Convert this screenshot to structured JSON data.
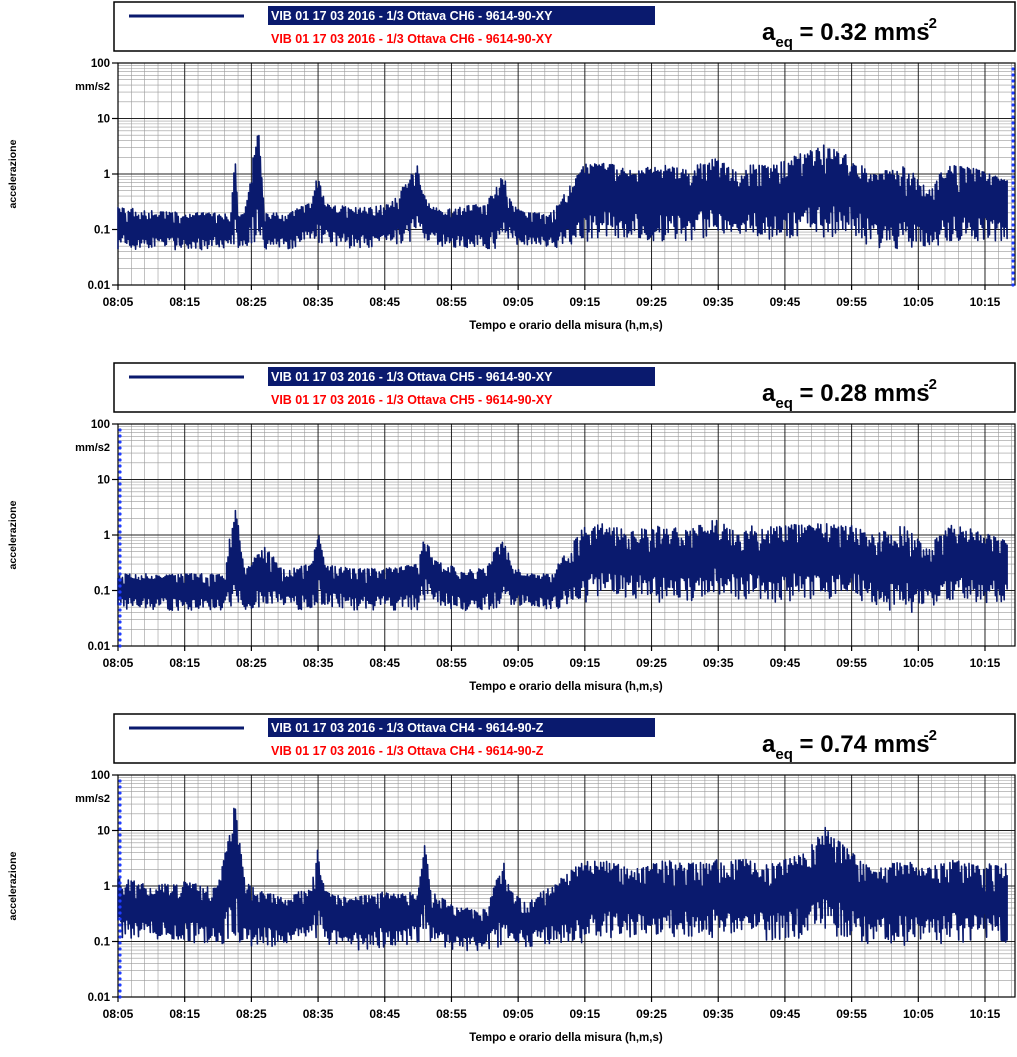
{
  "colors": {
    "series": "#0a1a6e",
    "legend_red": "#ff0000",
    "marker": "#1f3cff",
    "grid_major": "#222222",
    "grid_minor": "#9a9a9a"
  },
  "chart_data": [
    {
      "type": "line",
      "legend": {
        "series_label": "VIB 01 17 03 2016 - 1/3 Ottava CH6 - 9614-90-XY",
        "secondary_label": "VIB 01 17 03 2016 - 1/3 Ottava CH6 - 9614-90-XY"
      },
      "aeq": {
        "base": "a",
        "sub": "eq",
        "text": " = 0.32 mms",
        "sup": "-2"
      },
      "ylabel": "accelerazione",
      "yunit": "mm/s2",
      "xlabel": "Tempo e orario della misura (h,m,s)",
      "yscale": "log",
      "ylim": [
        0.01,
        100
      ],
      "yticks": [
        "100",
        "10",
        "1",
        "0.1",
        "0.01"
      ],
      "xticks": [
        "08:05",
        "08:15",
        "08:25",
        "08:35",
        "08:45",
        "08:55",
        "09:05",
        "09:15",
        "09:25",
        "09:35",
        "09:45",
        "09:55",
        "10:05",
        "10:15"
      ],
      "marker_side": "right",
      "series": [
        {
          "name": "VIB 01 17 03 2016 - 1/3 Ottava CH6 - 9614-90-XY",
          "x_minutes": [
            0,
            10,
            17,
            17.5,
            18,
            19,
            21,
            22,
            25,
            29,
            30,
            31,
            35,
            38,
            41,
            45,
            46,
            47,
            51,
            55,
            58,
            59,
            61,
            65,
            70,
            73,
            77,
            82,
            85,
            90,
            93,
            95,
            98,
            103,
            106,
            110,
            113,
            118,
            121,
            125,
            128,
            133
          ],
          "low": [
            0.04,
            0.04,
            0.04,
            0.04,
            0.04,
            0.04,
            0.04,
            0.04,
            0.04,
            0.05,
            0.05,
            0.05,
            0.04,
            0.04,
            0.04,
            0.05,
            0.05,
            0.05,
            0.04,
            0.04,
            0.04,
            0.05,
            0.05,
            0.04,
            0.05,
            0.06,
            0.06,
            0.05,
            0.05,
            0.07,
            0.06,
            0.06,
            0.05,
            0.06,
            0.05,
            0.07,
            0.04,
            0.03,
            0.04,
            0.05,
            0.05,
            0.05
          ],
          "high": [
            0.25,
            0.2,
            0.2,
            3,
            0.2,
            0.2,
            8,
            0.2,
            0.2,
            0.3,
            1.2,
            0.3,
            0.25,
            0.25,
            0.3,
            1.5,
            0.4,
            0.25,
            0.25,
            0.3,
            1.1,
            0.3,
            0.2,
            0.2,
            1.5,
            1.6,
            1.2,
            1.5,
            1.2,
            2,
            1,
            1.5,
            1.4,
            2.5,
            3.5,
            2,
            1,
            1.5,
            0.6,
            1.5,
            1.3,
            0.8
          ]
        }
      ]
    },
    {
      "type": "line",
      "legend": {
        "series_label": "VIB 01 17 03 2016 - 1/3 Ottava CH5 - 9614-90-XY",
        "secondary_label": "VIB 01 17 03 2016 - 1/3 Ottava CH5 - 9614-90-XY"
      },
      "aeq": {
        "base": "a",
        "sub": "eq",
        "text": " = 0.28 mms",
        "sup": "-2"
      },
      "ylabel": "accelerazione",
      "yunit": "mm/s2",
      "xlabel": "Tempo e orario della misura (h,m,s)",
      "yscale": "log",
      "ylim": [
        0.01,
        100
      ],
      "yticks": [
        "100",
        "10",
        "1",
        "0.1",
        "0.01"
      ],
      "xticks": [
        "08:05",
        "08:15",
        "08:25",
        "08:35",
        "08:45",
        "08:55",
        "09:05",
        "09:15",
        "09:25",
        "09:35",
        "09:45",
        "09:55",
        "10:05",
        "10:15"
      ],
      "marker_side": "left",
      "series": [
        {
          "name": "VIB 01 17 03 2016 - 1/3 Ottava CH5 - 9614-90-XY",
          "x_minutes": [
            0,
            10,
            16,
            17.5,
            19,
            22,
            25,
            29,
            30,
            31,
            35,
            40,
            45,
            46,
            47,
            51,
            55,
            58,
            59,
            61,
            65,
            70,
            73,
            77,
            82,
            85,
            90,
            93,
            95,
            98,
            103,
            106,
            110,
            113,
            118,
            121,
            125,
            128,
            133
          ],
          "low": [
            0.04,
            0.04,
            0.04,
            0.04,
            0.04,
            0.04,
            0.04,
            0.04,
            0.05,
            0.05,
            0.04,
            0.04,
            0.04,
            0.05,
            0.05,
            0.04,
            0.04,
            0.04,
            0.05,
            0.05,
            0.04,
            0.05,
            0.06,
            0.06,
            0.05,
            0.05,
            0.07,
            0.06,
            0.06,
            0.05,
            0.06,
            0.05,
            0.07,
            0.04,
            0.03,
            0.04,
            0.05,
            0.05,
            0.05
          ],
          "high": [
            0.2,
            0.2,
            0.2,
            4,
            0.25,
            0.6,
            0.25,
            0.3,
            1.2,
            0.3,
            0.25,
            0.25,
            0.3,
            1.3,
            0.4,
            0.25,
            0.25,
            1.1,
            0.3,
            0.2,
            0.2,
            1.5,
            1.6,
            1.2,
            1.5,
            1.2,
            2,
            1,
            1.5,
            1.4,
            1.6,
            1.6,
            1.5,
            1,
            1.5,
            0.6,
            1.5,
            1.3,
            0.8
          ]
        }
      ]
    },
    {
      "type": "line",
      "legend": {
        "series_label": "VIB 01 17 03 2016 - 1/3 Ottava CH4 - 9614-90-Z",
        "secondary_label": "VIB 01 17 03 2016 - 1/3 Ottava CH4 - 9614-90-Z"
      },
      "aeq": {
        "base": "a",
        "sub": "eq",
        "text": " = 0.74 mms",
        "sup": "-2"
      },
      "ylabel": "accelerazione",
      "yunit": "mm/s2",
      "xlabel": "Tempo e orario della misura (h,m,s)",
      "yscale": "log",
      "ylim": [
        0.01,
        100
      ],
      "yticks": [
        "100",
        "10",
        "1",
        "0.1",
        "0.01"
      ],
      "xticks": [
        "08:05",
        "08:15",
        "08:25",
        "08:35",
        "08:45",
        "08:55",
        "09:05",
        "09:15",
        "09:25",
        "09:35",
        "09:45",
        "09:55",
        "10:05",
        "10:15"
      ],
      "marker_side": "left",
      "series": [
        {
          "name": "VIB 01 17 03 2016 - 1/3 Ottava CH4 - 9614-90-Z",
          "x_minutes": [
            0,
            5,
            10,
            15,
            17.5,
            19,
            22,
            25,
            29,
            30,
            31,
            35,
            40,
            45,
            46,
            47,
            51,
            55,
            58,
            59,
            61,
            65,
            70,
            73,
            77,
            82,
            85,
            90,
            93,
            95,
            98,
            103,
            106,
            110,
            113,
            118,
            121,
            125,
            128,
            133
          ],
          "low": [
            0.1,
            0.1,
            0.08,
            0.07,
            0.08,
            0.07,
            0.07,
            0.07,
            0.08,
            0.1,
            0.08,
            0.06,
            0.07,
            0.08,
            0.1,
            0.08,
            0.06,
            0.06,
            0.07,
            0.1,
            0.07,
            0.07,
            0.08,
            0.1,
            0.1,
            0.1,
            0.1,
            0.1,
            0.1,
            0.1,
            0.08,
            0.1,
            0.1,
            0.1,
            0.07,
            0.07,
            0.07,
            0.08,
            0.08,
            0.08
          ],
          "high": [
            1.5,
            1,
            1.2,
            1,
            33,
            1.2,
            0.8,
            0.6,
            1,
            5,
            0.8,
            0.6,
            0.8,
            0.8,
            6,
            0.8,
            0.4,
            0.4,
            3,
            0.8,
            0.5,
            1,
            3,
            3,
            2,
            3,
            2.5,
            3,
            3,
            3,
            2.5,
            4,
            12,
            4,
            2,
            3,
            2,
            3,
            2.5,
            2.5
          ]
        }
      ]
    }
  ]
}
